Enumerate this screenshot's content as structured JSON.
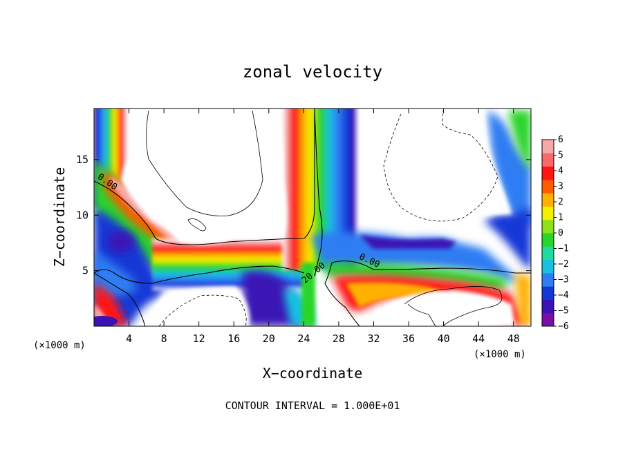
{
  "chart_data": {
    "type": "heatmap",
    "title": "zonal velocity",
    "xlabel": "X−coordinate",
    "ylabel": "Z−coordinate",
    "x_unit": "(×1000 m)",
    "footer": "CONTOUR INTERVAL = 1.000E+01",
    "xlim": [
      0,
      50
    ],
    "ylim": [
      0,
      19.6
    ],
    "x_ticks": [
      4,
      8,
      12,
      16,
      20,
      24,
      28,
      32,
      36,
      40,
      44,
      48
    ],
    "y_ticks": [
      5,
      10,
      15
    ],
    "colorbar": {
      "ticks": [
        6,
        5,
        4,
        3,
        2,
        1,
        0,
        -1,
        -2,
        -3,
        -4,
        -5,
        -6
      ],
      "range": [
        -6,
        6
      ],
      "colors": [
        "#7b0fa3",
        "#3b13b5",
        "#1238d6",
        "#2f7df2",
        "#19c0e0",
        "#1fdba0",
        "#2bd42b",
        "#8ee01a",
        "#f0f000",
        "#ffb000",
        "#ff5a00",
        "#ff1414",
        "#f86a6a",
        "#f6a8a8"
      ]
    },
    "contour_labels": [
      {
        "text": "0.00",
        "x": 1.2,
        "y": 12.3
      },
      {
        "text": "20.00",
        "x": 25.0,
        "y": 6.0
      },
      {
        "text": "0.00",
        "x": 31.5,
        "y": 5.4
      }
    ]
  }
}
